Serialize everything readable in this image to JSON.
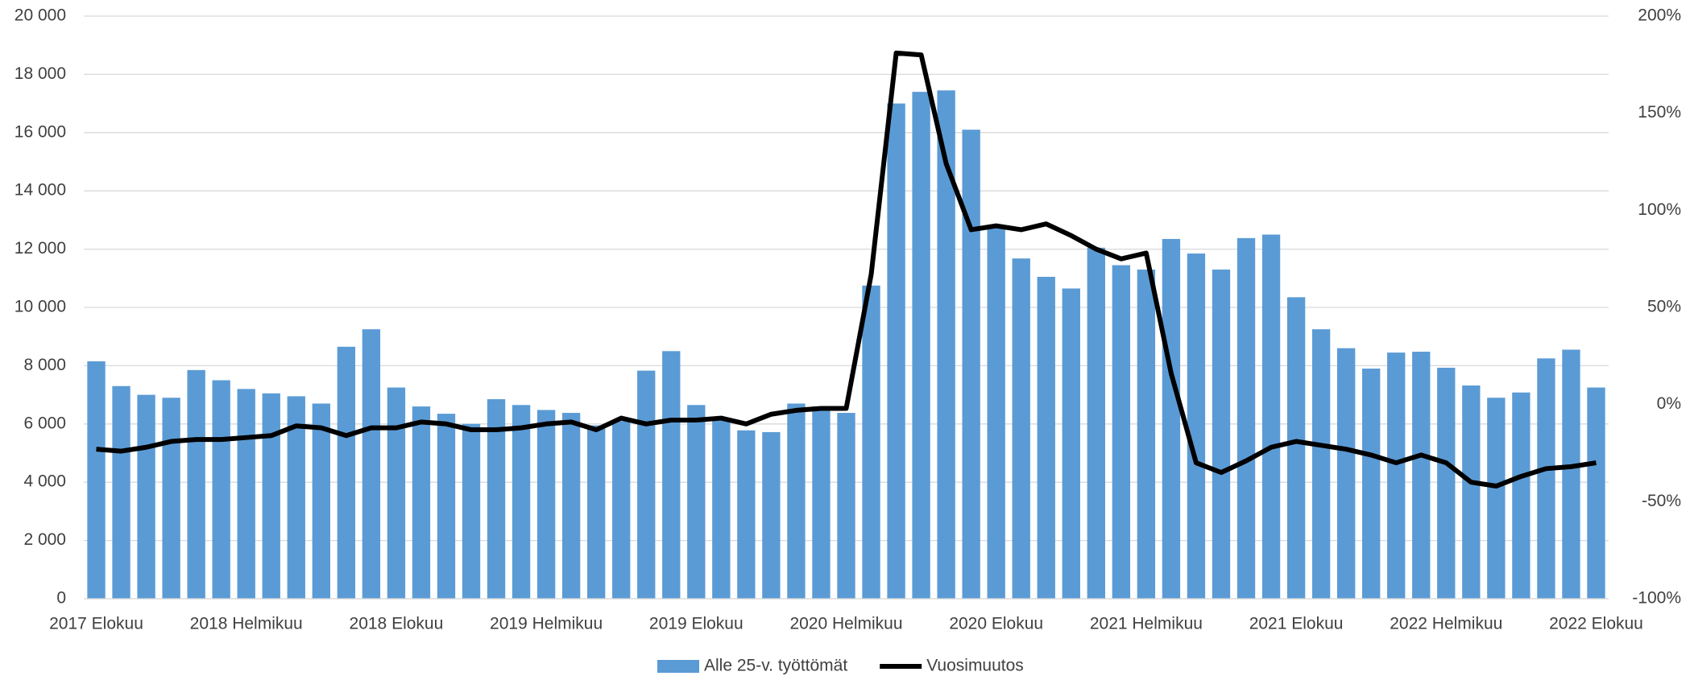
{
  "chart_data": {
    "type": "bar-line",
    "categories": [
      "2017 Elokuu",
      null,
      null,
      null,
      null,
      null,
      "2018 Helmikuu",
      null,
      null,
      null,
      null,
      null,
      "2018 Elokuu",
      null,
      null,
      null,
      null,
      null,
      "2019 Helmikuu",
      null,
      null,
      null,
      null,
      null,
      "2019 Elokuu",
      null,
      null,
      null,
      null,
      null,
      "2020 Helmikuu",
      null,
      null,
      null,
      null,
      null,
      "2020 Elokuu",
      null,
      null,
      null,
      null,
      null,
      "2021 Helmikuu",
      null,
      null,
      null,
      null,
      null,
      "2021 Elokuu",
      null,
      null,
      null,
      null,
      null,
      "2022 Helmikuu",
      null,
      null,
      null,
      null,
      null,
      "2022 Elokuu"
    ],
    "series": [
      {
        "name": "Alle 25-v. työttömät",
        "type": "bar",
        "color": "#5b9bd5",
        "values": [
          8150,
          7300,
          7000,
          6900,
          7850,
          7500,
          7200,
          7050,
          6950,
          6700,
          8650,
          9250,
          7250,
          6600,
          6350,
          6000,
          6850,
          6650,
          6480,
          6380,
          5950,
          6100,
          7830,
          8500,
          6650,
          6200,
          5780,
          5720,
          6700,
          6600,
          6380,
          10750,
          17000,
          17400,
          17450,
          16100,
          12800,
          11680,
          11050,
          10650,
          12050,
          11450,
          11300,
          12350,
          11850,
          11300,
          12380,
          12500,
          10350,
          9250,
          8600,
          7900,
          8450,
          8480,
          7930,
          7320,
          6900,
          7080,
          8250,
          8550,
          7250
        ]
      },
      {
        "name": "Vuosimuutos",
        "type": "line",
        "axis": "y2",
        "color": "#000000",
        "values": [
          -23,
          -24,
          -22,
          -19,
          -18,
          -18,
          -17,
          -16,
          -11,
          -12,
          -16,
          -12,
          -12,
          -9,
          -10,
          -13,
          -13,
          -12,
          -10,
          -9,
          -13,
          -7,
          -10,
          -8,
          -8,
          -7,
          -10,
          -5,
          -3,
          -2,
          -2,
          67,
          181,
          180,
          124,
          90,
          92,
          90,
          93,
          87,
          80,
          75,
          78,
          16,
          -30,
          -35,
          -29,
          -22,
          -19,
          -21,
          -23,
          -26,
          -30,
          -26,
          -30,
          -40,
          -42,
          -37,
          -33,
          -32,
          -30
        ]
      }
    ],
    "ylim": [
      0,
      20000
    ],
    "yticks": [
      0,
      {
        "value": 2000,
        "label": "2 000"
      },
      {
        "value": 4000,
        "label": "4 000"
      },
      {
        "value": 6000,
        "label": "6 000"
      },
      {
        "value": 8000,
        "label": "8 000"
      },
      {
        "value": 10000,
        "label": "10 000"
      },
      {
        "value": 12000,
        "label": "12 000"
      },
      {
        "value": 14000,
        "label": "14 000"
      },
      {
        "value": 16000,
        "label": "16 000"
      },
      {
        "value": 18000,
        "label": "18 000"
      },
      {
        "value": 20000,
        "label": "20 000"
      }
    ],
    "y2lim": [
      -100,
      200
    ],
    "y2ticks": [
      {
        "value": -100,
        "label": "-100%"
      },
      {
        "value": -50,
        "label": "-50%"
      },
      {
        "value": 0,
        "label": "0%"
      },
      {
        "value": 50,
        "label": "50%"
      },
      {
        "value": 100,
        "label": "100%"
      },
      {
        "value": 150,
        "label": "150%"
      },
      {
        "value": 200,
        "label": "200%"
      }
    ],
    "grid": true,
    "legend": "bottom"
  }
}
